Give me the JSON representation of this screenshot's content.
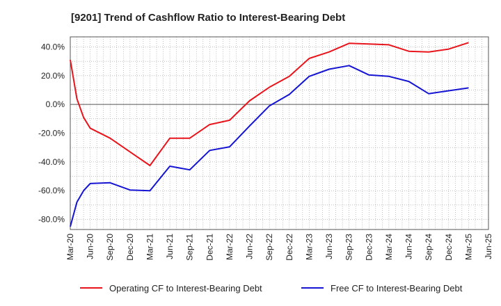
{
  "chart_data": {
    "type": "line",
    "title": "[9201]  Trend of Cashflow Ratio to Interest-Bearing Debt",
    "xlabel": "",
    "ylabel": "",
    "x_ticks": [
      "Mar-20",
      "Jun-20",
      "Sep-20",
      "Dec-20",
      "Mar-21",
      "Jun-21",
      "Sep-21",
      "Dec-21",
      "Mar-22",
      "Jun-22",
      "Sep-22",
      "Dec-22",
      "Mar-23",
      "Jun-23",
      "Sep-23",
      "Dec-23",
      "Mar-24",
      "Jun-24",
      "Sep-24",
      "Dec-24",
      "Mar-25",
      "Jun-25"
    ],
    "y_ticks": [
      40,
      20,
      0,
      -20,
      -40,
      -60,
      -80
    ],
    "y_tick_format": "%",
    "ylim": [
      -87,
      47
    ],
    "grid": true,
    "legend_position": "bottom",
    "series": [
      {
        "name": "Operating CF to Interest-Bearing Debt",
        "color": "#e8141b",
        "points": [
          [
            "Mar-20",
            31.0
          ],
          [
            "Apr-20",
            4.0
          ],
          [
            "May-20",
            -9.0
          ],
          [
            "Jun-20",
            -16.5
          ],
          [
            "Sep-20",
            -23.5
          ],
          [
            "Dec-20",
            -33.0
          ],
          [
            "Mar-21",
            -42.5
          ],
          [
            "Jun-21",
            -23.5
          ],
          [
            "Sep-21",
            -23.5
          ],
          [
            "Dec-21",
            -14.0
          ],
          [
            "Mar-22",
            -11.0
          ],
          [
            "Jun-22",
            2.5
          ],
          [
            "Sep-22",
            12.0
          ],
          [
            "Dec-22",
            19.5
          ],
          [
            "Mar-23",
            32.0
          ],
          [
            "Jun-23",
            36.5
          ],
          [
            "Sep-23",
            42.5
          ],
          [
            "Dec-23",
            42.0
          ],
          [
            "Mar-24",
            41.5
          ],
          [
            "Jun-24",
            37.0
          ],
          [
            "Sep-24",
            36.5
          ],
          [
            "Dec-24",
            38.5
          ],
          [
            "Mar-25",
            43.0
          ]
        ]
      },
      {
        "name": "Free CF to Interest-Bearing Debt",
        "color": "#1414d2",
        "points": [
          [
            "Mar-20",
            -85.0
          ],
          [
            "Apr-20",
            -68.0
          ],
          [
            "May-20",
            -60.0
          ],
          [
            "Jun-20",
            -55.0
          ],
          [
            "Sep-20",
            -54.5
          ],
          [
            "Dec-20",
            -59.5
          ],
          [
            "Mar-21",
            -60.0
          ],
          [
            "Jun-21",
            -43.0
          ],
          [
            "Sep-21",
            -45.5
          ],
          [
            "Dec-21",
            -32.0
          ],
          [
            "Mar-22",
            -29.5
          ],
          [
            "Jun-22",
            -15.0
          ],
          [
            "Sep-22",
            -1.0
          ],
          [
            "Dec-22",
            7.0
          ],
          [
            "Mar-23",
            19.5
          ],
          [
            "Jun-23",
            24.5
          ],
          [
            "Sep-23",
            27.0
          ],
          [
            "Dec-23",
            20.5
          ],
          [
            "Mar-24",
            19.5
          ],
          [
            "Jun-24",
            16.0
          ],
          [
            "Sep-24",
            7.5
          ],
          [
            "Dec-24",
            9.5
          ],
          [
            "Mar-25",
            11.5
          ]
        ]
      }
    ]
  }
}
